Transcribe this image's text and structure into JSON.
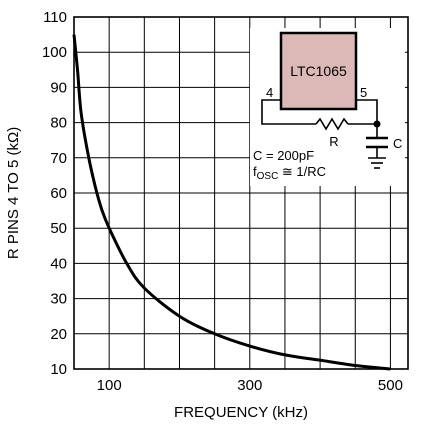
{
  "chart_data": {
    "type": "line",
    "title": "",
    "xlabel": "FREQUENCY (kHz)",
    "ylabel": "R PINS 4 TO 5 (kΩ)",
    "xlim": [
      50,
      525
    ],
    "ylim": [
      10,
      110
    ],
    "x_ticks": [
      100,
      300,
      500
    ],
    "x_tick_labels": [
      "100",
      "300",
      "500"
    ],
    "y_ticks": [
      10,
      20,
      30,
      40,
      50,
      60,
      70,
      80,
      90,
      100,
      110
    ],
    "y_tick_labels": [
      "10",
      "20",
      "30",
      "40",
      "50",
      "60",
      "70",
      "80",
      "90",
      "100",
      "110"
    ],
    "x_grid_step": 50,
    "grid": true,
    "legend": "none",
    "series": [
      {
        "name": "",
        "x": [
          50,
          55,
          60,
          70,
          80,
          90,
          100,
          125,
          150,
          200,
          250,
          300,
          350,
          400,
          450,
          500
        ],
        "y": [
          105,
          95,
          83,
          71,
          62,
          55,
          50,
          40,
          33,
          25,
          20,
          16.5,
          14,
          12.5,
          11,
          10
        ]
      }
    ],
    "inset": {
      "chip_label": "LTC1065",
      "pin_left": "4",
      "pin_right": "5",
      "resistor_label": "R",
      "capacitor_label": "C",
      "cap_value_label": "C = 200pF",
      "fosc_main": "f",
      "fosc_sub": "OSC",
      "fosc_rest": " ≅ 1/RC",
      "chip_fill": "#dbb9b6"
    }
  }
}
